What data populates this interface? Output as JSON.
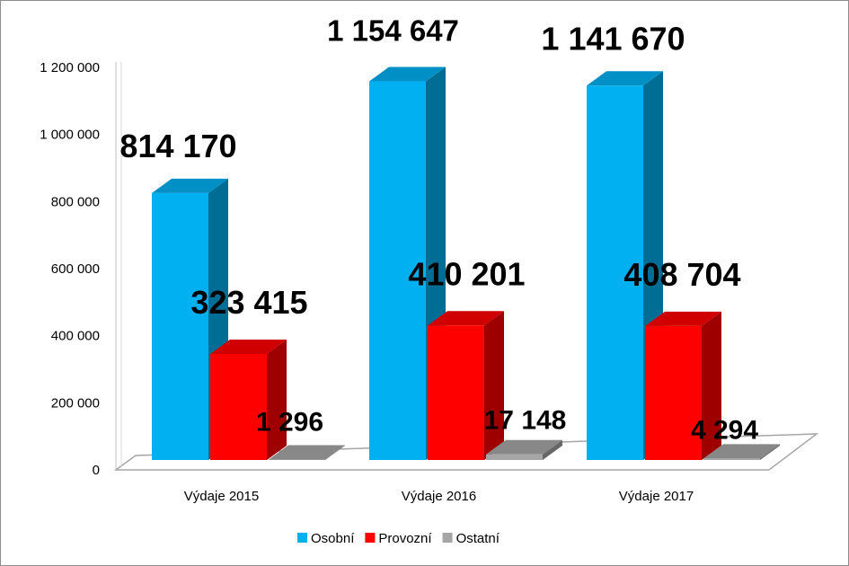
{
  "chart_data": {
    "type": "bar",
    "style": "3d-clustered-column",
    "categories": [
      "Výdaje 2015",
      "Výdaje 2016",
      "Výdaje 2017"
    ],
    "series": [
      {
        "name": "Osobní",
        "color": "#00b0f0",
        "values": [
          814170,
          1154647,
          1141670
        ],
        "labels": [
          "814 170",
          "1 154 647",
          "1 141 670"
        ]
      },
      {
        "name": "Provozní",
        "color": "#ff0000",
        "values": [
          323415,
          410201,
          408704
        ],
        "labels": [
          "323 415",
          "410 201",
          "408 704"
        ]
      },
      {
        "name": "Ostatní",
        "color": "#a6a6a6",
        "values": [
          1296,
          17148,
          4294
        ],
        "labels": [
          "1 296",
          "17 148",
          "4 294"
        ]
      }
    ],
    "ylim": [
      0,
      1200000
    ],
    "yticks": [
      0,
      200000,
      400000,
      600000,
      800000,
      1000000,
      1200000
    ],
    "ytick_labels": [
      "0",
      "200 000",
      "400 000",
      "600 000",
      "800 000",
      "1 000 000",
      "1 200 000"
    ],
    "grid": false,
    "legend": "bottom"
  }
}
